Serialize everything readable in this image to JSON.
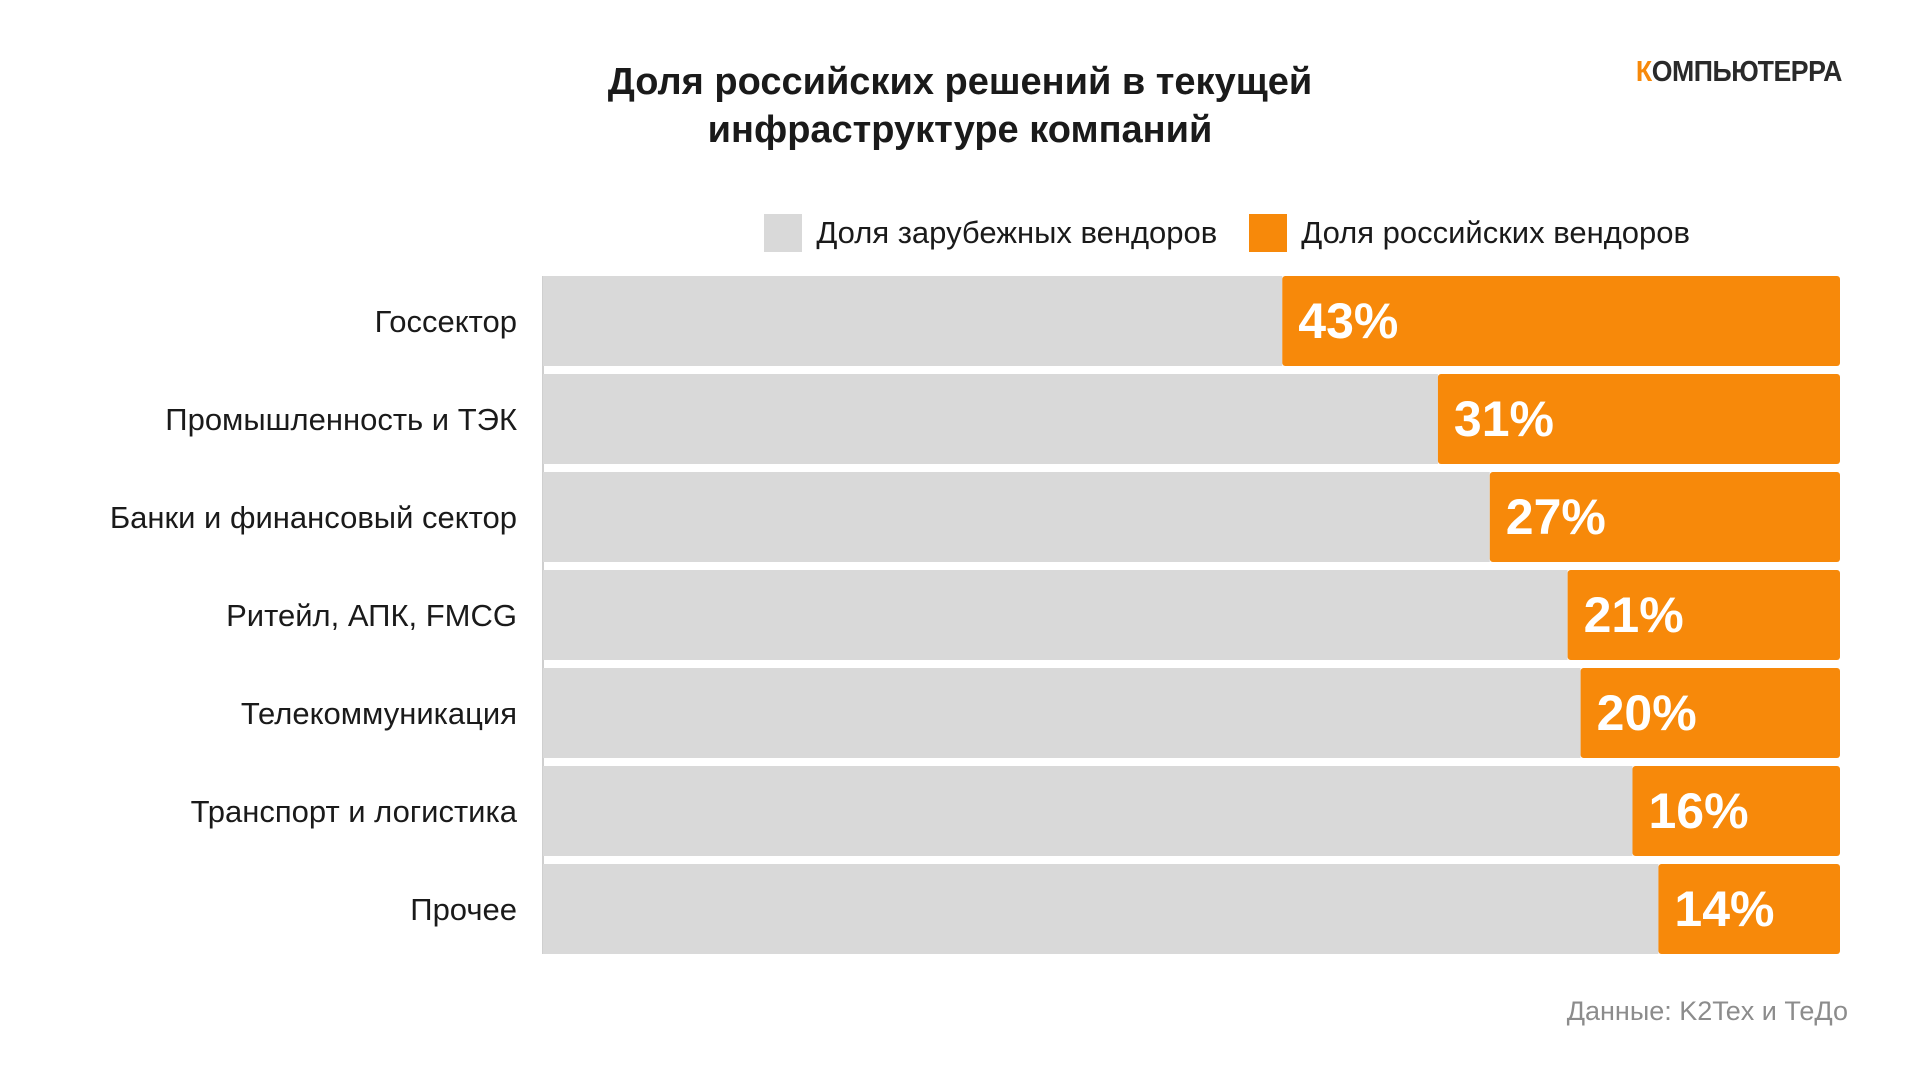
{
  "title": {
    "line1": "Доля российских решений в текущей",
    "line2": "инфраструктуре компаний"
  },
  "logo": {
    "first_letter": "К",
    "rest": "ОМПЬЮТЕРРА"
  },
  "source": "Данные: K2Tex и ТеДо",
  "colors": {
    "foreign": "#d9d9d9",
    "russian": "#f7890a",
    "gridline": "#ffffff",
    "axis": "#cfcfcf"
  },
  "chart_data": {
    "type": "bar",
    "orientation": "horizontal",
    "stacked": true,
    "normalized_percent": true,
    "title": "Доля российских решений в текущей инфраструктуре компаний",
    "categories": [
      "Госсектор",
      "Промышленность и ТЭК",
      "Банки и финансовый сектор",
      "Ритейл, АПК, FMCG",
      "Телекоммуникация",
      "Транспорт и логистика",
      "Прочее"
    ],
    "series": [
      {
        "name": "Доля зарубежных вендоров",
        "color": "#d9d9d9",
        "values": [
          57,
          69,
          73,
          79,
          80,
          84,
          86
        ]
      },
      {
        "name": "Доля российских вендоров",
        "color": "#f7890a",
        "values": [
          43,
          31,
          27,
          21,
          20,
          16,
          14
        ],
        "labels": [
          "43%",
          "31%",
          "27%",
          "21%",
          "20%",
          "16%",
          "14%"
        ]
      }
    ],
    "xlim": [
      0,
      100
    ],
    "xticks": [
      0,
      20,
      40,
      60,
      80,
      100
    ],
    "legend_position": "top-right",
    "grid": true
  }
}
